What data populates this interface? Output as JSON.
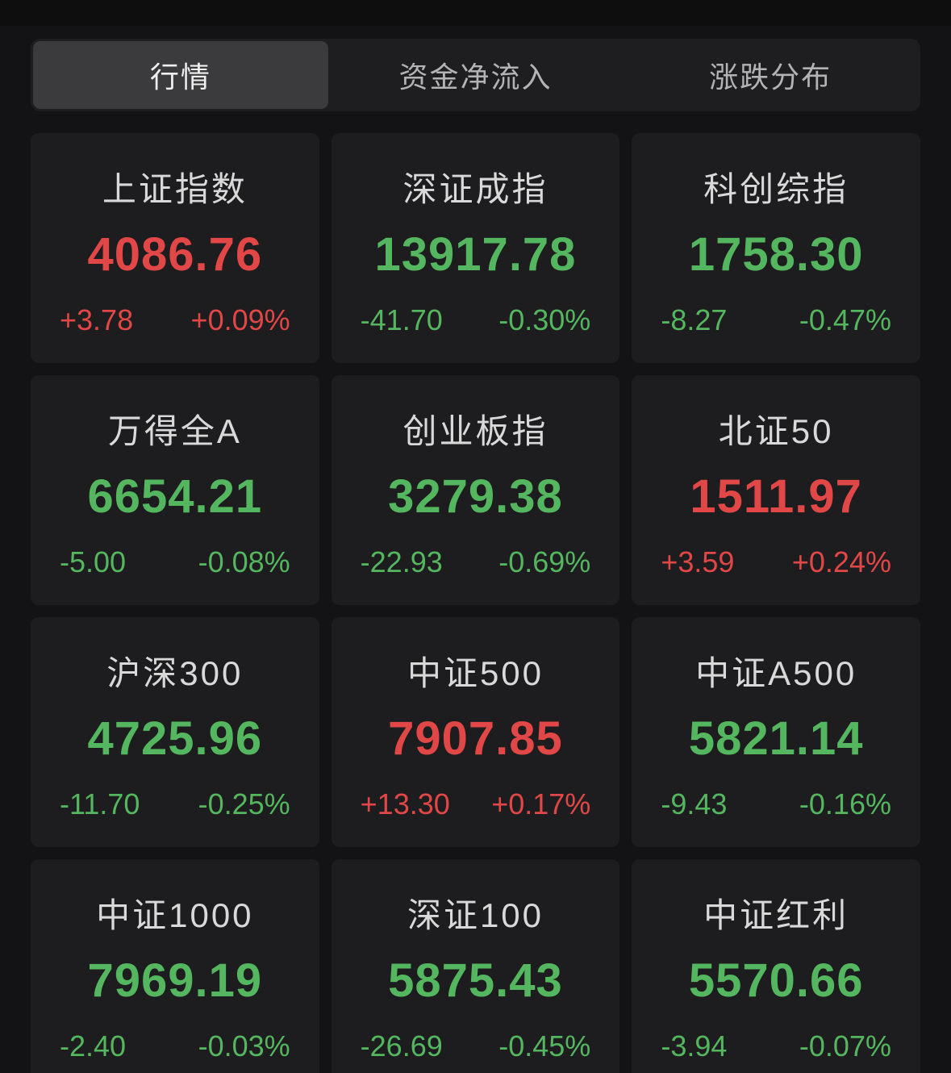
{
  "colors": {
    "up": "#e24747",
    "down": "#54b65e"
  },
  "tabs": [
    {
      "label": "行情",
      "state": "active"
    },
    {
      "label": "资金净流入",
      "state": "inactive"
    },
    {
      "label": "涨跌分布",
      "state": "inactive"
    }
  ],
  "indices": [
    {
      "name": "上证指数",
      "value": "4086.76",
      "change": "+3.78",
      "change_pct": "+0.09%",
      "direction": "up"
    },
    {
      "name": "深证成指",
      "value": "13917.78",
      "change": "-41.70",
      "change_pct": "-0.30%",
      "direction": "down"
    },
    {
      "name": "科创综指",
      "value": "1758.30",
      "change": "-8.27",
      "change_pct": "-0.47%",
      "direction": "down"
    },
    {
      "name": "万得全A",
      "value": "6654.21",
      "change": "-5.00",
      "change_pct": "-0.08%",
      "direction": "down"
    },
    {
      "name": "创业板指",
      "value": "3279.38",
      "change": "-22.93",
      "change_pct": "-0.69%",
      "direction": "down"
    },
    {
      "name": "北证50",
      "value": "1511.97",
      "change": "+3.59",
      "change_pct": "+0.24%",
      "direction": "up"
    },
    {
      "name": "沪深300",
      "value": "4725.96",
      "change": "-11.70",
      "change_pct": "-0.25%",
      "direction": "down"
    },
    {
      "name": "中证500",
      "value": "7907.85",
      "change": "+13.30",
      "change_pct": "+0.17%",
      "direction": "up"
    },
    {
      "name": "中证A500",
      "value": "5821.14",
      "change": "-9.43",
      "change_pct": "-0.16%",
      "direction": "down"
    },
    {
      "name": "中证1000",
      "value": "7969.19",
      "change": "-2.40",
      "change_pct": "-0.03%",
      "direction": "down"
    },
    {
      "name": "深证100",
      "value": "5875.43",
      "change": "-26.69",
      "change_pct": "-0.45%",
      "direction": "down"
    },
    {
      "name": "中证红利",
      "value": "5570.66",
      "change": "-3.94",
      "change_pct": "-0.07%",
      "direction": "down"
    }
  ]
}
